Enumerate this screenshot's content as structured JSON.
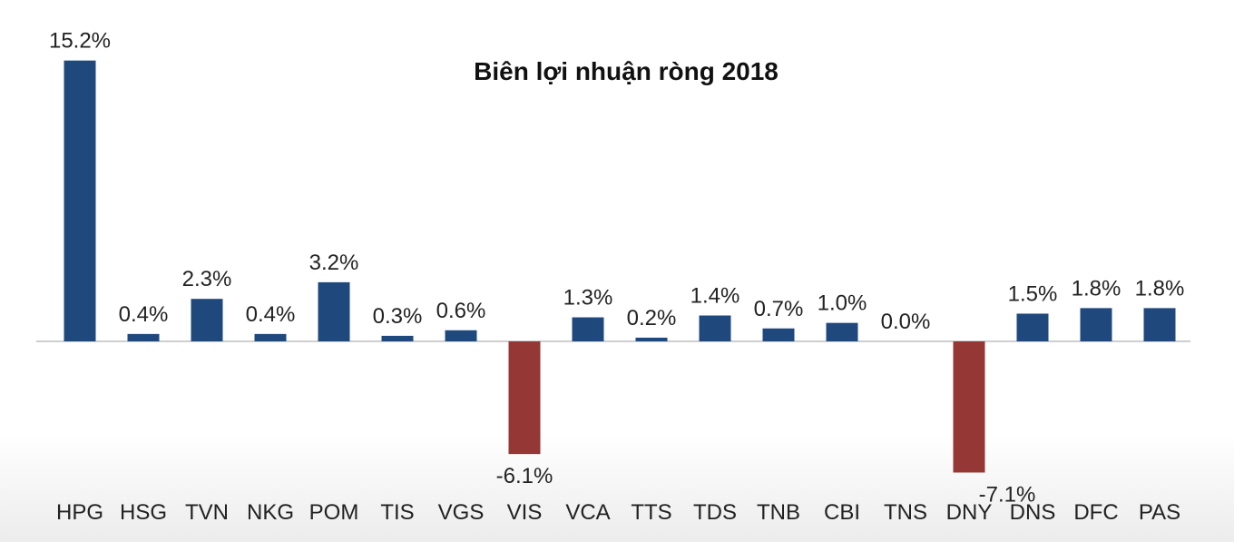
{
  "chart_data": {
    "type": "bar",
    "title": "Biên lợi nhuận ròng 2018",
    "categories": [
      "HPG",
      "HSG",
      "TVN",
      "NKG",
      "POM",
      "TIS",
      "VGS",
      "VIS",
      "VCA",
      "TTS",
      "TDS",
      "TNB",
      "CBI",
      "TNS",
      "DNY",
      "DNS",
      "DFC",
      "PAS"
    ],
    "values": [
      15.2,
      0.4,
      2.3,
      0.4,
      3.2,
      0.3,
      0.6,
      -6.1,
      1.3,
      0.2,
      1.4,
      0.7,
      1.0,
      0.0,
      -7.1,
      1.5,
      1.8,
      1.8
    ],
    "value_labels": [
      "15.2%",
      "0.4%",
      "2.3%",
      "0.4%",
      "3.2%",
      "0.3%",
      "0.6%",
      "-6.1%",
      "1.3%",
      "0.2%",
      "1.4%",
      "0.7%",
      "1.0%",
      "0.0%",
      "-7.1%",
      "1.5%",
      "1.8%",
      "1.8%"
    ],
    "positive_color": "#1f497d",
    "negative_color": "#953735",
    "grid": false,
    "legend": "none"
  }
}
